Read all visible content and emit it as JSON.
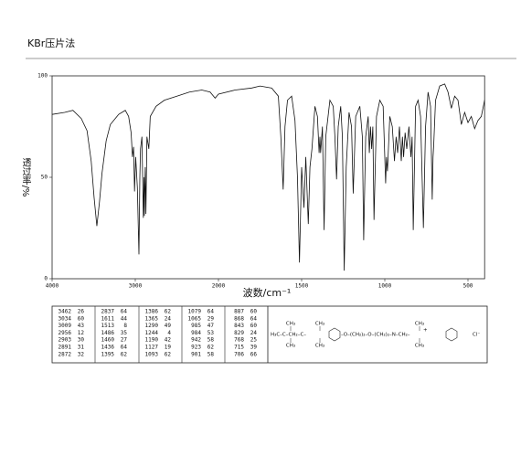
{
  "header": {
    "title": "KBr压片法"
  },
  "chart_data": {
    "type": "line",
    "y_label": "透过率/%",
    "x_label": "波数/cm⁻¹",
    "color": "#111111",
    "xlim": [
      4000,
      400
    ],
    "xticks": [
      4000,
      3000,
      2000,
      1500,
      1000,
      500
    ],
    "ylim": [
      0,
      100
    ],
    "yticks": [
      0,
      50,
      100
    ],
    "x": [
      4000,
      3850,
      3750,
      3650,
      3580,
      3530,
      3495,
      3462,
      3430,
      3400,
      3350,
      3300,
      3200,
      3120,
      3080,
      3050,
      3034,
      3020,
      3009,
      2995,
      2975,
      2956,
      2945,
      2937,
      2920,
      2903,
      2895,
      2891,
      2880,
      2872,
      2860,
      2837,
      2820,
      2750,
      2650,
      2500,
      2350,
      2200,
      2100,
      2040,
      2000,
      1900,
      1800,
      1750,
      1680,
      1640,
      1625,
      1611,
      1600,
      1585,
      1560,
      1540,
      1525,
      1513,
      1500,
      1486,
      1475,
      1460,
      1450,
      1438,
      1420,
      1405,
      1395,
      1390,
      1386,
      1375,
      1365,
      1355,
      1330,
      1310,
      1300,
      1290,
      1280,
      1265,
      1255,
      1244,
      1232,
      1215,
      1200,
      1190,
      1175,
      1150,
      1135,
      1127,
      1115,
      1100,
      1093,
      1086,
      1079,
      1072,
      1065,
      1050,
      1030,
      1010,
      995,
      990,
      984,
      970,
      955,
      942,
      932,
      923,
      912,
      901,
      894,
      887,
      878,
      868,
      855,
      843,
      836,
      829,
      815,
      800,
      785,
      768,
      755,
      740,
      725,
      715,
      710,
      706,
      695,
      670,
      640,
      620,
      600,
      580,
      560,
      540,
      520,
      500,
      480,
      460,
      440,
      420,
      400
    ],
    "values": [
      81,
      82,
      83,
      79,
      73,
      58,
      40,
      26,
      38,
      52,
      68,
      76,
      81,
      83,
      80,
      72,
      60,
      65,
      43,
      60,
      45,
      12,
      50,
      64,
      70,
      30,
      50,
      31,
      55,
      32,
      70,
      64,
      80,
      85,
      88,
      90,
      92,
      93,
      92,
      89,
      91,
      93,
      94,
      95,
      94,
      90,
      70,
      44,
      75,
      88,
      90,
      78,
      50,
      8,
      55,
      35,
      60,
      27,
      55,
      64,
      85,
      80,
      62,
      70,
      62,
      75,
      24,
      70,
      88,
      85,
      70,
      49,
      75,
      85,
      70,
      4,
      55,
      82,
      75,
      42,
      80,
      85,
      70,
      19,
      70,
      80,
      62,
      75,
      64,
      75,
      29,
      80,
      88,
      85,
      47,
      60,
      53,
      80,
      75,
      58,
      70,
      62,
      75,
      58,
      70,
      60,
      72,
      64,
      75,
      60,
      70,
      24,
      85,
      88,
      80,
      25,
      75,
      92,
      85,
      39,
      60,
      66,
      88,
      95,
      96,
      92,
      84,
      90,
      88,
      76,
      82,
      77,
      80,
      74,
      78,
      80,
      88
    ]
  },
  "peak_table": {
    "columns": [
      [
        [
          3462,
          26
        ],
        [
          3034,
          60
        ],
        [
          3009,
          43
        ],
        [
          2956,
          12
        ],
        [
          2903,
          30
        ],
        [
          2891,
          31
        ],
        [
          2872,
          32
        ]
      ],
      [
        [
          2837,
          64
        ],
        [
          1611,
          44
        ],
        [
          1513,
          8
        ],
        [
          1486,
          35
        ],
        [
          1460,
          27
        ],
        [
          1436,
          64
        ],
        [
          1395,
          62
        ]
      ],
      [
        [
          1386,
          62
        ],
        [
          1365,
          24
        ],
        [
          1290,
          49
        ],
        [
          1244,
          4
        ],
        [
          1190,
          42
        ],
        [
          1127,
          19
        ],
        [
          1093,
          62
        ]
      ],
      [
        [
          1079,
          64
        ],
        [
          1065,
          29
        ],
        [
          985,
          47
        ],
        [
          984,
          53
        ],
        [
          942,
          58
        ],
        [
          923,
          62
        ],
        [
          901,
          58
        ]
      ],
      [
        [
          887,
          60
        ],
        [
          868,
          64
        ],
        [
          843,
          60
        ],
        [
          829,
          24
        ],
        [
          768,
          25
        ],
        [
          715,
          39
        ],
        [
          706,
          66
        ]
      ]
    ]
  },
  "structure": {
    "labels": [
      "CH₃",
      "CH₃",
      "H₃C–C–CH₂–C–",
      "CH₃",
      "CH₃",
      "–O–(CH₂)₂–O–(CH₂)₂–N–CH₂–",
      "CH₃",
      "CH₃",
      "+",
      "Cl⁻"
    ]
  }
}
